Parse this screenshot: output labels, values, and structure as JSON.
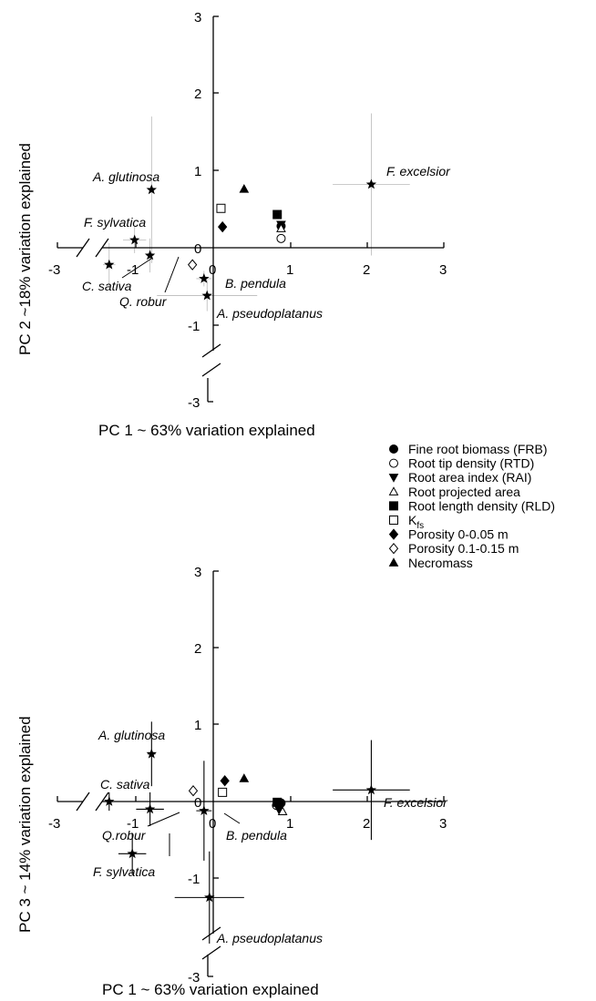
{
  "chart_data": [
    {
      "type": "scatter",
      "panel": "top",
      "xlabel": "PC 1 ~ 63% variation explained",
      "ylabel": "PC 2 ~18% variation explained",
      "xlim": [
        -3,
        3
      ],
      "ylim": [
        -3,
        3
      ],
      "xticks": [
        "-3",
        "-1",
        "0",
        "1",
        "2",
        "3"
      ],
      "yticks": [
        "3",
        "2",
        "1",
        "0",
        "-1",
        "-3"
      ],
      "species": [
        {
          "label": "A. glutinosa",
          "x": -0.8,
          "y": 0.75,
          "ex": 0,
          "ey": 0.95
        },
        {
          "label": "F. sylvatica",
          "x": -1.02,
          "y": 0.1,
          "ex": 0.15,
          "ey": 0.17
        },
        {
          "label": "C. sativa",
          "x": -1.35,
          "y": -0.22,
          "ex": 0.08,
          "ey": 0.28
        },
        {
          "label": "Q. robur",
          "x": -0.82,
          "y": -0.1,
          "ex": 0.05,
          "ey": 0.22
        },
        {
          "label": "B. pendula",
          "x": -0.12,
          "y": -0.4,
          "ex": 0.1,
          "ey": 0.1
        },
        {
          "label": "A. pseudoplatanus",
          "x": -0.08,
          "y": -0.62,
          "ex": 0.65,
          "ey": 0.2
        },
        {
          "label": "F. excelsior",
          "x": 2.05,
          "y": 0.82,
          "ex": 0.5,
          "ey": 0.92
        }
      ],
      "traits": [
        {
          "label": "Fine root biomass (FRB)",
          "x": 0.88,
          "y": 0.28
        },
        {
          "label": "Root tip density (RTD)",
          "x": 0.88,
          "y": 0.12
        },
        {
          "label": "Root area index (RAI)",
          "x": 0.88,
          "y": 0.3
        },
        {
          "label": "Root projected area",
          "x": 0.88,
          "y": 0.25
        },
        {
          "label": "Root length density (RLD)",
          "x": 0.83,
          "y": 0.43
        },
        {
          "label": "Kfs",
          "x": 0.1,
          "y": 0.51
        },
        {
          "label": "Porosity 0-0.05 m",
          "x": 0.12,
          "y": 0.27
        },
        {
          "label": "Porosity 0.1-0.15 m",
          "x": -0.27,
          "y": -0.22
        },
        {
          "label": "Necromass",
          "x": 0.4,
          "y": 0.76
        }
      ]
    },
    {
      "type": "scatter",
      "panel": "bottom",
      "xlabel": "PC 1 ~ 63% variation explained",
      "ylabel": "PC 3 ~ 14% variation explained",
      "xlim": [
        -3,
        3
      ],
      "ylim": [
        -3,
        3
      ],
      "xticks": [
        "-3",
        "-1",
        "0",
        "1",
        "2",
        "3"
      ],
      "yticks": [
        "3",
        "2",
        "1",
        "0",
        "-1",
        "-3"
      ],
      "species": [
        {
          "label": "A. glutinosa",
          "x": -0.8,
          "y": 0.62,
          "ex": 0.05,
          "ey": 0.42
        },
        {
          "label": "C. sativa",
          "x": -1.35,
          "y": 0.0,
          "ex": 0.05,
          "ey": 0.12
        },
        {
          "label": "Q.robur",
          "x": -0.82,
          "y": -0.1,
          "ex": 0.18,
          "ey": 0.22
        },
        {
          "label": "F. sylvatica",
          "x": -1.05,
          "y": -0.68,
          "ex": 0.18,
          "ey": 0.27
        },
        {
          "label": "B. pendula",
          "x": -0.12,
          "y": -0.12,
          "ex": 0.1,
          "ey": 0.65
        },
        {
          "label": "A. pseudoplatanus",
          "x": -0.05,
          "y": -1.25,
          "ex": 0.45,
          "ey": 0.6
        },
        {
          "label": "F. excelsior",
          "x": 2.05,
          "y": 0.15,
          "ex": 0.5,
          "ey": 0.65
        }
      ],
      "traits": [
        {
          "label": "Fine root biomass (FRB)",
          "x": 0.88,
          "y": -0.02
        },
        {
          "label": "Root tip density (RTD)",
          "x": 0.82,
          "y": -0.05
        },
        {
          "label": "Root area index (RAI)",
          "x": 0.85,
          "y": -0.1
        },
        {
          "label": "Root projected area",
          "x": 0.9,
          "y": -0.13
        },
        {
          "label": "Root length density (RLD)",
          "x": 0.83,
          "y": -0.01
        },
        {
          "label": "Kfs",
          "x": 0.12,
          "y": 0.12
        },
        {
          "label": "Porosity 0-0.05 m",
          "x": 0.15,
          "y": 0.27
        },
        {
          "label": "Porosity 0.1-0.15 m",
          "x": -0.26,
          "y": 0.14
        },
        {
          "label": "Necromass",
          "x": 0.4,
          "y": 0.3
        }
      ]
    }
  ],
  "legend": {
    "items": [
      {
        "text": "Fine root biomass (FRB)",
        "marker": "filled-circle"
      },
      {
        "text": "Root tip density (RTD)",
        "marker": "open-circle"
      },
      {
        "text": "Root area index (RAI)",
        "marker": "filled-triangle-down"
      },
      {
        "text": "Root projected area",
        "marker": "open-triangle-up"
      },
      {
        "text": "Root length density (RLD)",
        "marker": "filled-square"
      },
      {
        "text": "K",
        "sub": "fs",
        "marker": "open-square"
      },
      {
        "text": "Porosity 0-0.05 m",
        "marker": "filled-diamond"
      },
      {
        "text": "Porosity 0.1-0.15 m",
        "marker": "open-diamond"
      },
      {
        "text": "Necromass",
        "marker": "filled-triangle-up"
      }
    ]
  }
}
